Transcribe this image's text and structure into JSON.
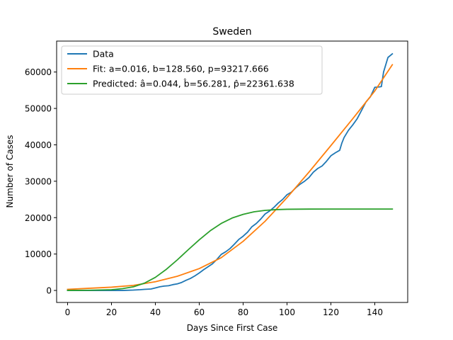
{
  "chart_data": {
    "type": "line",
    "title": "Sweden",
    "xlabel": "Days Since First Case",
    "ylabel": "Number of Cases",
    "xlim": [
      -5,
      155
    ],
    "ylim": [
      -3300,
      68500
    ],
    "xticks": [
      0,
      20,
      40,
      60,
      80,
      100,
      120,
      140
    ],
    "yticks": [
      0,
      10000,
      20000,
      30000,
      40000,
      50000,
      60000
    ],
    "grid": false,
    "legend_position": "top-left",
    "series": [
      {
        "name": "Data",
        "color": "#1f77b4",
        "x": [
          0,
          10,
          20,
          25,
          30,
          33,
          35,
          38,
          40,
          42,
          44,
          46,
          48,
          50,
          52,
          54,
          56,
          58,
          60,
          62,
          64,
          66,
          68,
          70,
          72,
          74,
          76,
          78,
          80,
          82,
          84,
          86,
          88,
          90,
          92,
          94,
          96,
          98,
          100,
          102,
          104,
          106,
          108,
          110,
          112,
          114,
          116,
          118,
          120,
          122,
          124,
          125,
          126,
          128,
          130,
          132,
          134,
          136,
          138,
          140,
          142,
          143,
          144,
          146,
          148
        ],
        "y": [
          0,
          0,
          0,
          0,
          100,
          200,
          300,
          400,
          700,
          1000,
          1200,
          1300,
          1600,
          1800,
          2200,
          2800,
          3300,
          4000,
          4800,
          5700,
          6500,
          7300,
          8500,
          9900,
          10600,
          11500,
          12700,
          14000,
          14900,
          16000,
          17500,
          18400,
          19600,
          21000,
          21800,
          22800,
          24000,
          25000,
          26300,
          27000,
          28200,
          29200,
          30000,
          31000,
          32500,
          33500,
          34200,
          35500,
          37000,
          37800,
          38500,
          40500,
          42000,
          44000,
          45500,
          47200,
          49500,
          51800,
          53200,
          55800,
          55900,
          56000,
          60000,
          64000,
          65000
        ]
      },
      {
        "name": "Fit: a=0.016, b=128.560, p=93217.666",
        "color": "#ff7f0e",
        "x": [
          0,
          10,
          20,
          30,
          40,
          50,
          60,
          70,
          80,
          90,
          100,
          110,
          120,
          130,
          140,
          148
        ],
        "y": [
          300,
          600,
          900,
          1400,
          2400,
          3900,
          6000,
          9000,
          13500,
          19000,
          25500,
          32500,
          39800,
          47200,
          54800,
          62000
        ]
      },
      {
        "name": "Predicted: â=0.044, b̂=56.281, p̂=22361.638",
        "color": "#2ca02c",
        "x": [
          0,
          10,
          20,
          25,
          30,
          35,
          40,
          45,
          50,
          55,
          60,
          65,
          70,
          75,
          80,
          85,
          90,
          95,
          100,
          110,
          120,
          130,
          140,
          148
        ],
        "y": [
          0,
          50,
          200,
          500,
          1000,
          2000,
          3600,
          5800,
          8400,
          11200,
          13900,
          16400,
          18400,
          19900,
          20900,
          21600,
          22000,
          22200,
          22300,
          22350,
          22360,
          22360,
          22360,
          22360
        ]
      }
    ]
  }
}
